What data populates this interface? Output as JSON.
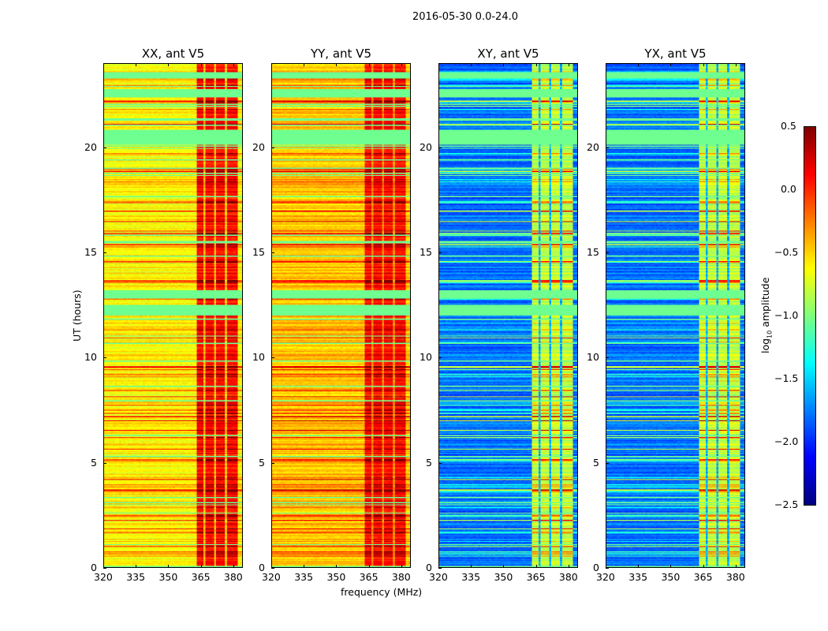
{
  "chart_data": {
    "type": "heatmap",
    "title": "2016-05-30 0.0-24.0",
    "xlabel": "frequency (MHz)",
    "ylabel": "UT (hours)",
    "xlim": [
      320,
      384.4
    ],
    "ylim": [
      0,
      24
    ],
    "xticks": [
      "320",
      "335",
      "350",
      "365",
      "380"
    ],
    "yticks": [
      "0",
      "5",
      "10",
      "15",
      "20"
    ],
    "colormap": "jet",
    "colorbar": {
      "label": "log10 amplitude",
      "label_main": "log",
      "label_sub": "10",
      "label_tail": " amplitude",
      "range": [
        -2.5,
        0.5
      ],
      "ticks": [
        "0.5",
        "0.0",
        "−0.5",
        "−1.0",
        "−1.5",
        "−2.0",
        "−2.5"
      ]
    },
    "flagged_hour_ranges": [
      [
        20.15,
        20.85
      ],
      [
        12.8,
        13.2
      ],
      [
        12.0,
        12.5
      ],
      [
        23.3,
        23.6
      ],
      [
        22.4,
        22.7
      ]
    ],
    "rfi_band_mhz": [
      363,
      382
    ],
    "panels": [
      {
        "title": "XX, ant V5",
        "baseline_log10_amp": -0.6,
        "rfi_log10_amp": 0.1
      },
      {
        "title": "YY, ant V5",
        "baseline_log10_amp": -0.45,
        "rfi_log10_amp": 0.1
      },
      {
        "title": "XY, ant V5",
        "baseline_log10_amp": -1.8,
        "rfi_log10_amp": -0.8
      },
      {
        "title": "YX, ant V5",
        "baseline_log10_amp": -1.8,
        "rfi_log10_amp": -0.8
      }
    ]
  }
}
